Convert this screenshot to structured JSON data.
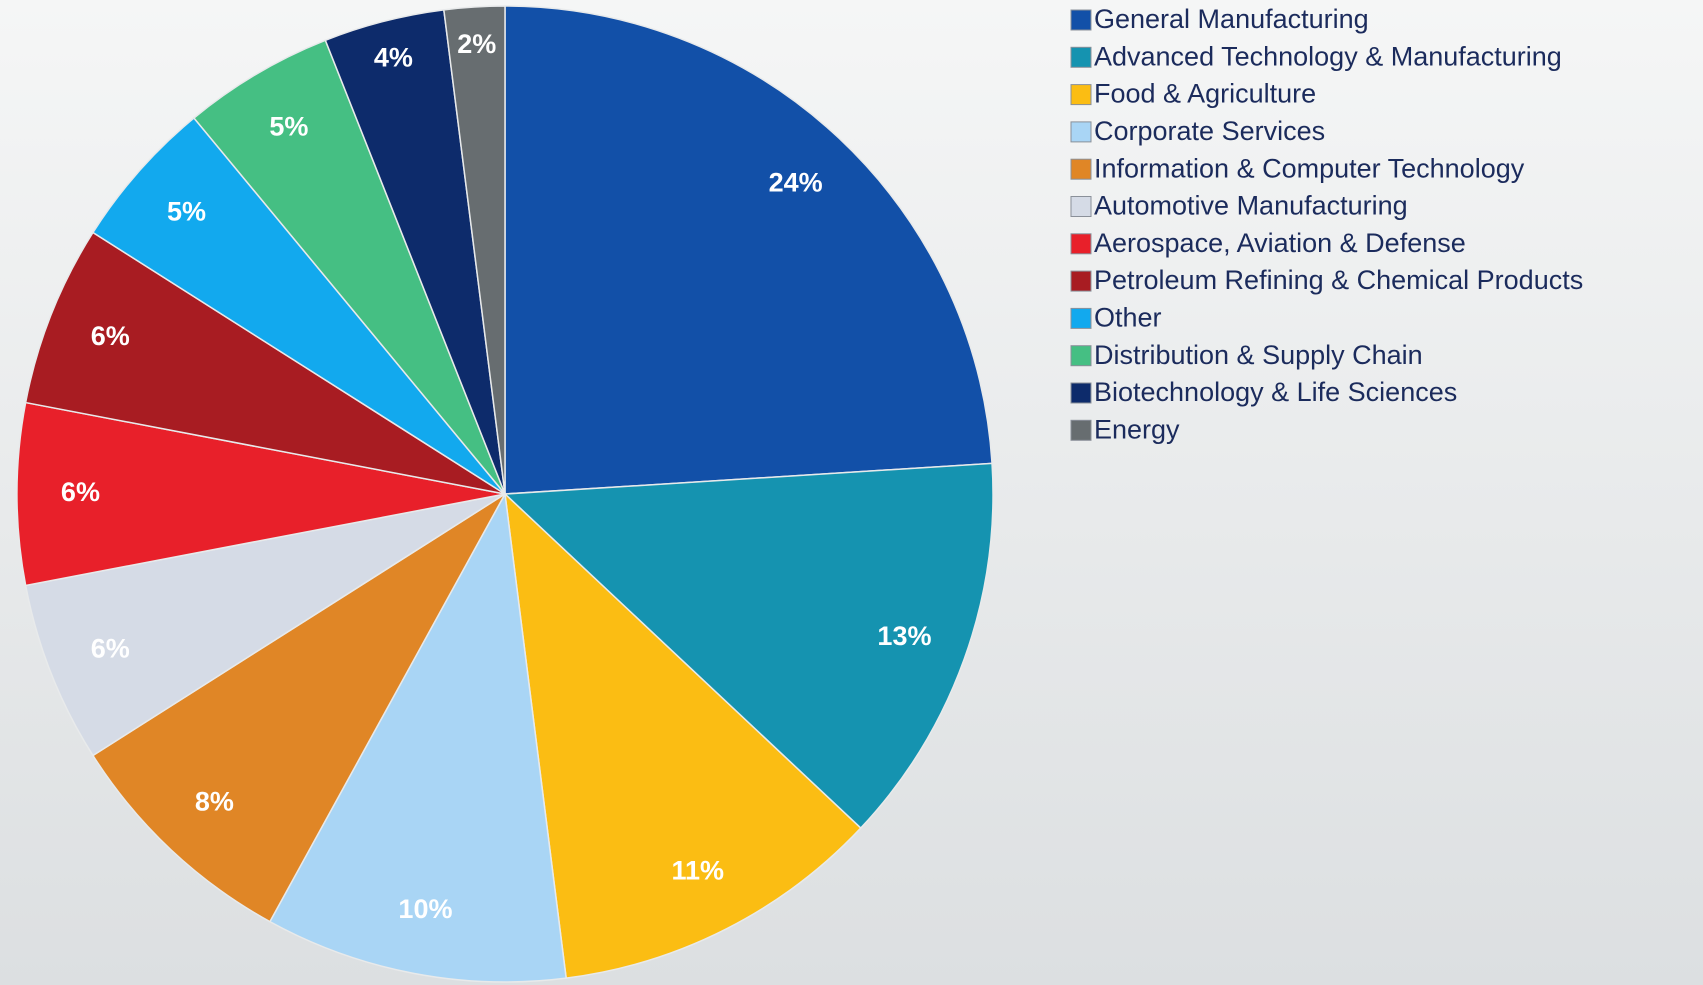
{
  "chart_data": {
    "type": "pie",
    "categories": [
      "General Manufacturing",
      "Advanced Technology & Manufacturing",
      "Food & Agriculture",
      "Corporate Services",
      "Information & Computer Technology",
      "Automotive Manufacturing",
      "Aerospace, Aviation & Defense",
      "Petroleum Refining & Chemical Products",
      "Other",
      "Distribution & Supply Chain",
      "Biotechnology & Life Sciences",
      "Energy"
    ],
    "values": [
      24,
      13,
      11,
      10,
      8,
      6,
      6,
      6,
      5,
      5,
      4,
      2
    ],
    "value_labels": [
      "24%",
      "13%",
      "11%",
      "10%",
      "8%",
      "6%",
      "6%",
      "6%",
      "5%",
      "5%",
      "4%",
      "2%"
    ],
    "colors": [
      "#1250a8",
      "#1593b0",
      "#fbbd13",
      "#a9d5f5",
      "#e08626",
      "#d5dbe6",
      "#e8202a",
      "#a81c22",
      "#12a9ee",
      "#45bf83",
      "#0d2b6b",
      "#676d70"
    ],
    "legend": "right"
  }
}
